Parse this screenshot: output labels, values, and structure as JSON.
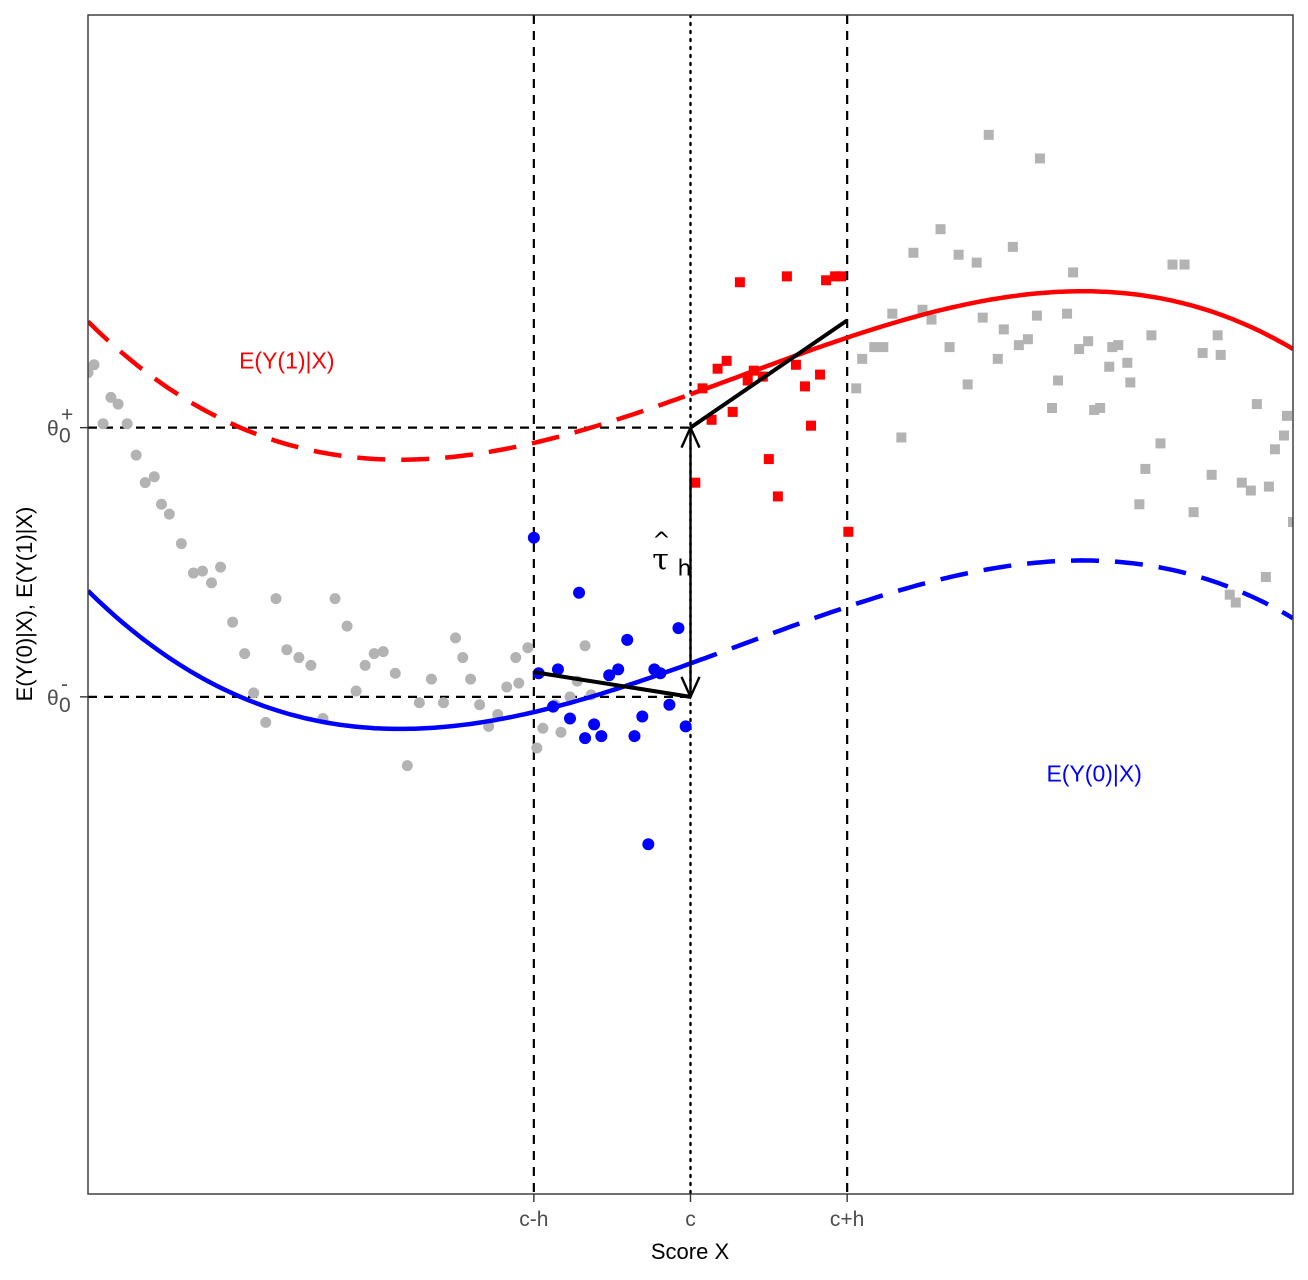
{
  "chart_data": {
    "type": "scatter",
    "title": "",
    "xlabel": "Score X",
    "ylabel": "E(Y(0)|X), E(Y(1)|X)",
    "xlim": [
      -1,
      1
    ],
    "ylim": [
      -1.5,
      1.5
    ],
    "grid": false,
    "x_tick_labels": [
      {
        "label": "c-h",
        "x": -0.26
      },
      {
        "label": "c",
        "x": 0.0
      },
      {
        "label": "c+h",
        "x": 0.26
      }
    ],
    "y_tick_labels": [
      {
        "base": "θ",
        "sub": "0",
        "sup": "+",
        "y": 0.45
      },
      {
        "base": "θ",
        "sub": "0",
        "sup": "-",
        "y": -0.235
      }
    ],
    "cutoff": 0.0,
    "bandwidth": 0.26,
    "curves": [
      {
        "name": "E(Y(1)|X)",
        "color": "#ff0000",
        "label_pos": {
          "x": -0.67,
          "y": 0.6
        },
        "coeffs": [
          0.535,
          0.555,
          0.15,
          -0.59
        ],
        "solid_range": [
          0,
          1
        ],
        "dashed_range": [
          -1,
          0
        ]
      },
      {
        "name": "E(Y(0)|X)",
        "color": "#0000ff",
        "label_pos": {
          "x": 0.67,
          "y": -0.45
        },
        "coeffs": [
          -0.15,
          0.555,
          0.15,
          -0.59
        ],
        "solid_range": [
          -1,
          0
        ],
        "dashed_range": [
          0,
          1
        ]
      }
    ],
    "local_fits": [
      {
        "side": "left",
        "x": [
          -0.26,
          0.0
        ],
        "y": [
          -0.172,
          -0.235
        ]
      },
      {
        "side": "right",
        "x": [
          0.0,
          0.26
        ],
        "y": [
          0.45,
          0.723
        ]
      }
    ],
    "effect_label": {
      "base": "τ",
      "hat": "^",
      "sub": "h"
    },
    "points_left_out": [
      [
        -1.0,
        0.59
      ],
      [
        -0.99,
        0.61
      ],
      [
        -0.975,
        0.46
      ],
      [
        -0.962,
        0.527
      ],
      [
        -0.95,
        0.51
      ],
      [
        -0.935,
        0.46
      ],
      [
        -0.92,
        0.38
      ],
      [
        -0.905,
        0.31
      ],
      [
        -0.89,
        0.325
      ],
      [
        -0.878,
        0.255
      ],
      [
        -0.865,
        0.23
      ],
      [
        -0.845,
        0.155
      ],
      [
        -0.825,
        0.08
      ],
      [
        -0.81,
        0.085
      ],
      [
        -0.795,
        0.055
      ],
      [
        -0.78,
        0.095
      ],
      [
        -0.76,
        -0.045
      ],
      [
        -0.74,
        -0.125
      ],
      [
        -0.725,
        -0.225
      ],
      [
        -0.705,
        -0.3
      ],
      [
        -0.688,
        0.015
      ],
      [
        -0.67,
        -0.115
      ],
      [
        -0.65,
        -0.135
      ],
      [
        -0.63,
        -0.155
      ],
      [
        -0.61,
        -0.29
      ],
      [
        -0.59,
        0.015
      ],
      [
        -0.57,
        -0.055
      ],
      [
        -0.555,
        -0.22
      ],
      [
        -0.54,
        -0.155
      ],
      [
        -0.525,
        -0.125
      ],
      [
        -0.51,
        -0.12
      ],
      [
        -0.49,
        -0.175
      ],
      [
        -0.47,
        -0.41
      ],
      [
        -0.45,
        -0.25
      ],
      [
        -0.43,
        -0.19
      ],
      [
        -0.41,
        -0.25
      ],
      [
        -0.39,
        -0.085
      ],
      [
        -0.378,
        -0.135
      ],
      [
        -0.365,
        -0.19
      ],
      [
        -0.35,
        -0.255
      ],
      [
        -0.335,
        -0.31
      ],
      [
        -0.32,
        -0.28
      ],
      [
        -0.305,
        -0.21
      ],
      [
        -0.29,
        -0.135
      ],
      [
        -0.27,
        -0.11
      ],
      [
        -0.255,
        -0.365
      ],
      [
        -0.245,
        -0.315
      ],
      [
        -0.225,
        -0.255
      ],
      [
        -0.215,
        -0.325
      ],
      [
        -0.2,
        -0.235
      ],
      [
        -0.188,
        -0.195
      ],
      [
        -0.175,
        -0.105
      ],
      [
        -0.165,
        -0.23
      ],
      [
        -0.285,
        -0.2
      ]
    ],
    "points_left_in": [
      [
        -0.26,
        0.17
      ],
      [
        -0.252,
        -0.175
      ],
      [
        -0.228,
        -0.26
      ],
      [
        -0.22,
        -0.165
      ],
      [
        -0.2,
        -0.29
      ],
      [
        -0.185,
        0.03
      ],
      [
        -0.175,
        -0.34
      ],
      [
        -0.16,
        -0.305
      ],
      [
        -0.148,
        -0.335
      ],
      [
        -0.135,
        -0.18
      ],
      [
        -0.12,
        -0.165
      ],
      [
        -0.105,
        -0.09
      ],
      [
        -0.093,
        -0.335
      ],
      [
        -0.08,
        -0.285
      ],
      [
        -0.07,
        -0.61
      ],
      [
        -0.06,
        -0.165
      ],
      [
        -0.05,
        -0.175
      ],
      [
        -0.035,
        -0.255
      ],
      [
        -0.02,
        -0.06
      ],
      [
        -0.008,
        -0.31
      ]
    ],
    "points_right_in": [
      [
        0.008,
        0.31
      ],
      [
        0.02,
        0.55
      ],
      [
        0.035,
        0.47
      ],
      [
        0.045,
        0.6
      ],
      [
        0.06,
        0.62
      ],
      [
        0.07,
        0.49
      ],
      [
        0.082,
        0.82
      ],
      [
        0.095,
        0.57
      ],
      [
        0.105,
        0.595
      ],
      [
        0.12,
        0.58
      ],
      [
        0.13,
        0.37
      ],
      [
        0.145,
        0.275
      ],
      [
        0.16,
        0.835
      ],
      [
        0.175,
        0.61
      ],
      [
        0.19,
        0.555
      ],
      [
        0.2,
        0.455
      ],
      [
        0.215,
        0.585
      ],
      [
        0.225,
        0.825
      ],
      [
        0.24,
        0.835
      ],
      [
        0.25,
        0.835
      ],
      [
        0.262,
        0.185
      ]
    ],
    "points_right_out": [
      [
        0.275,
        0.55
      ],
      [
        0.285,
        0.625
      ],
      [
        0.305,
        0.655
      ],
      [
        0.32,
        0.655
      ],
      [
        0.335,
        0.74
      ],
      [
        0.35,
        0.425
      ],
      [
        0.37,
        0.895
      ],
      [
        0.385,
        0.75
      ],
      [
        0.4,
        0.725
      ],
      [
        0.415,
        0.955
      ],
      [
        0.43,
        0.655
      ],
      [
        0.445,
        0.89
      ],
      [
        0.46,
        0.56
      ],
      [
        0.475,
        0.87
      ],
      [
        0.485,
        0.73
      ],
      [
        0.495,
        1.195
      ],
      [
        0.51,
        0.625
      ],
      [
        0.52,
        0.7
      ],
      [
        0.535,
        0.91
      ],
      [
        0.545,
        0.66
      ],
      [
        0.56,
        0.675
      ],
      [
        0.575,
        0.735
      ],
      [
        0.58,
        1.135
      ],
      [
        0.6,
        0.5
      ],
      [
        0.61,
        0.57
      ],
      [
        0.625,
        0.74
      ],
      [
        0.635,
        0.845
      ],
      [
        0.645,
        0.65
      ],
      [
        0.66,
        0.67
      ],
      [
        0.67,
        0.495
      ],
      [
        0.68,
        0.5
      ],
      [
        0.695,
        0.605
      ],
      [
        0.7,
        0.655
      ],
      [
        0.71,
        0.66
      ],
      [
        0.725,
        0.615
      ],
      [
        0.73,
        0.565
      ],
      [
        0.745,
        0.255
      ],
      [
        0.755,
        0.345
      ],
      [
        0.765,
        0.685
      ],
      [
        0.78,
        0.41
      ],
      [
        0.8,
        0.865
      ],
      [
        0.82,
        0.865
      ],
      [
        0.835,
        0.235
      ],
      [
        0.85,
        0.64
      ],
      [
        0.865,
        0.33
      ],
      [
        0.875,
        0.685
      ],
      [
        0.88,
        0.635
      ],
      [
        0.895,
        0.025
      ],
      [
        0.905,
        0.005
      ],
      [
        0.915,
        0.31
      ],
      [
        0.94,
        0.51
      ],
      [
        0.93,
        0.29
      ],
      [
        0.955,
        0.07
      ],
      [
        0.96,
        0.3
      ],
      [
        0.985,
        0.43
      ],
      [
        0.99,
        0.48
      ],
      [
        1.0,
        0.21
      ],
      [
        1.01,
        0.205
      ],
      [
        1.02,
        0.155
      ],
      [
        0.97,
        0.395
      ]
    ],
    "colors": {
      "treated": "#ff0000",
      "control": "#0000ff",
      "outside": "#b3b3b3",
      "fit": "#000000",
      "frame": "#333333"
    }
  }
}
